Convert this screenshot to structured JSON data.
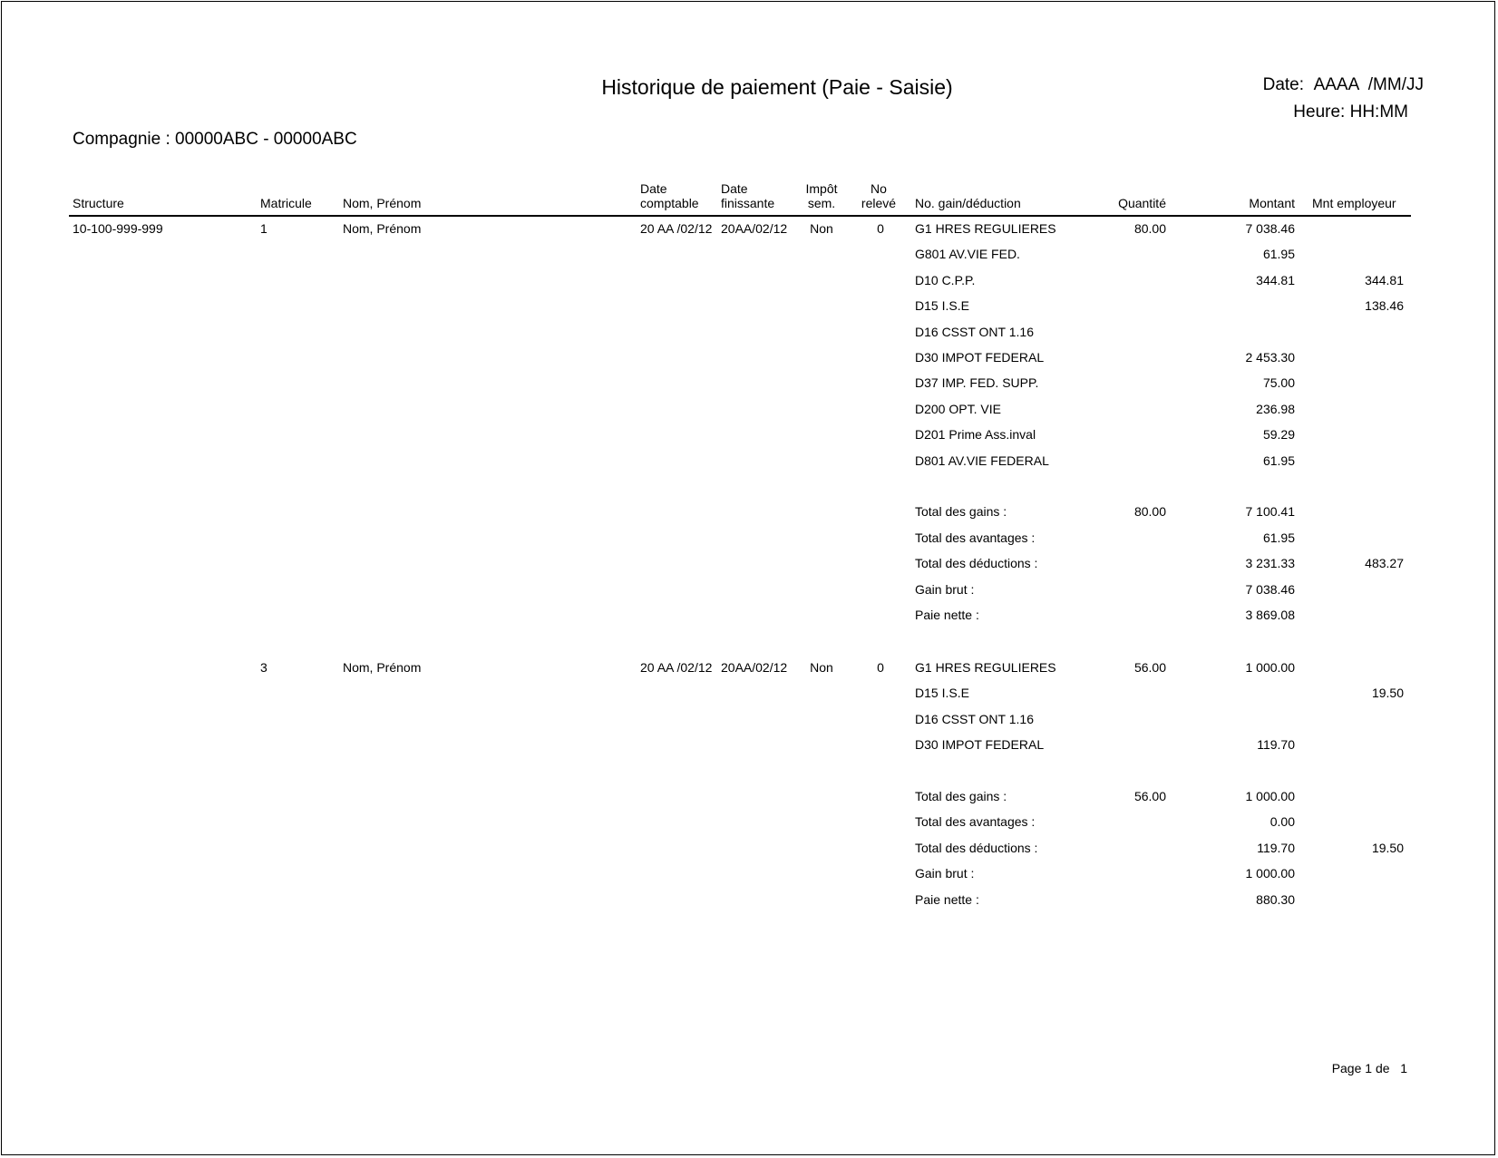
{
  "header": {
    "title": "Historique de paiement (Paie - Saisie)",
    "date_label": "Date:",
    "date_value": "AAAA  /MM/JJ",
    "time_label": "Heure:",
    "time_value": "HH:MM",
    "company_label": "Compagnie :",
    "company_value": "00000ABC - 00000ABC"
  },
  "columns": {
    "structure": "Structure",
    "matricule": "Matricule",
    "nom": "Nom, Prénom",
    "date_comptable_1": "Date",
    "date_comptable_2": "comptable",
    "date_finissante_1": "Date",
    "date_finissante_2": "finissante",
    "impot_1": "Impôt",
    "impot_2": "sem.",
    "releve_1": "No",
    "releve_2": "relevé",
    "gain": "No. gain/déduction",
    "quantite": "Quantité",
    "montant": "Montant",
    "mnt_employeur": "Mnt employeur"
  },
  "employees": [
    {
      "structure": "10-100-999-999",
      "matricule": "1",
      "nom": "Nom, Prénom",
      "date_comptable": "20 AA /02/12",
      "date_finissante": "20AA/02/12",
      "impot": "Non",
      "releve": "0",
      "lines": [
        {
          "code": "G1 HRES REGULIERES",
          "quantite": "80.00",
          "montant": "7 038.46",
          "employeur": ""
        },
        {
          "code": "G801 AV.VIE FED.",
          "quantite": "",
          "montant": "61.95",
          "employeur": ""
        },
        {
          "code": "D10 C.P.P.",
          "quantite": "",
          "montant": "344.81",
          "employeur": "344.81"
        },
        {
          "code": "D15 I.S.E",
          "quantite": "",
          "montant": "",
          "employeur": "138.46"
        },
        {
          "code": "D16 CSST ONT 1.16",
          "quantite": "",
          "montant": "",
          "employeur": ""
        },
        {
          "code": "D30 IMPOT FEDERAL",
          "quantite": "",
          "montant": "2 453.30",
          "employeur": ""
        },
        {
          "code": "D37 IMP. FED. SUPP.",
          "quantite": "",
          "montant": "75.00",
          "employeur": ""
        },
        {
          "code": "D200 OPT. VIE",
          "quantite": "",
          "montant": "236.98",
          "employeur": ""
        },
        {
          "code": "D201 Prime Ass.inval",
          "quantite": "",
          "montant": "59.29",
          "employeur": ""
        },
        {
          "code": "D801 AV.VIE FEDERAL",
          "quantite": "",
          "montant": "61.95",
          "employeur": ""
        }
      ],
      "totals": [
        {
          "label": "Total des gains :",
          "quantite": "80.00",
          "montant": "7 100.41",
          "employeur": ""
        },
        {
          "label": "Total des avantages :",
          "quantite": "",
          "montant": "61.95",
          "employeur": ""
        },
        {
          "label": "Total des déductions :",
          "quantite": "",
          "montant": "3 231.33",
          "employeur": "483.27"
        },
        {
          "label": "Gain brut :",
          "quantite": "",
          "montant": "7 038.46",
          "employeur": ""
        },
        {
          "label": "Paie nette :",
          "quantite": "",
          "montant": "3 869.08",
          "employeur": ""
        }
      ]
    },
    {
      "structure": "",
      "matricule": "3",
      "nom": "Nom, Prénom",
      "date_comptable": "20 AA /02/12",
      "date_finissante": "20AA/02/12",
      "impot": "Non",
      "releve": "0",
      "lines": [
        {
          "code": "G1 HRES REGULIERES",
          "quantite": "56.00",
          "montant": "1 000.00",
          "employeur": ""
        },
        {
          "code": "D15 I.S.E",
          "quantite": "",
          "montant": "",
          "employeur": "19.50"
        },
        {
          "code": "D16 CSST ONT 1.16",
          "quantite": "",
          "montant": "",
          "employeur": ""
        },
        {
          "code": "D30 IMPOT FEDERAL",
          "quantite": "",
          "montant": "119.70",
          "employeur": ""
        }
      ],
      "totals": [
        {
          "label": "Total des gains :",
          "quantite": "56.00",
          "montant": "1 000.00",
          "employeur": ""
        },
        {
          "label": "Total des avantages :",
          "quantite": "",
          "montant": "0.00",
          "employeur": ""
        },
        {
          "label": "Total des déductions :",
          "quantite": "",
          "montant": "119.70",
          "employeur": "19.50"
        },
        {
          "label": "Gain brut :",
          "quantite": "",
          "montant": "1 000.00",
          "employeur": ""
        },
        {
          "label": "Paie nette :",
          "quantite": "",
          "montant": "880.30",
          "employeur": ""
        }
      ]
    }
  ],
  "footer": {
    "page_label": "Page 1 de",
    "page_total": "1"
  }
}
